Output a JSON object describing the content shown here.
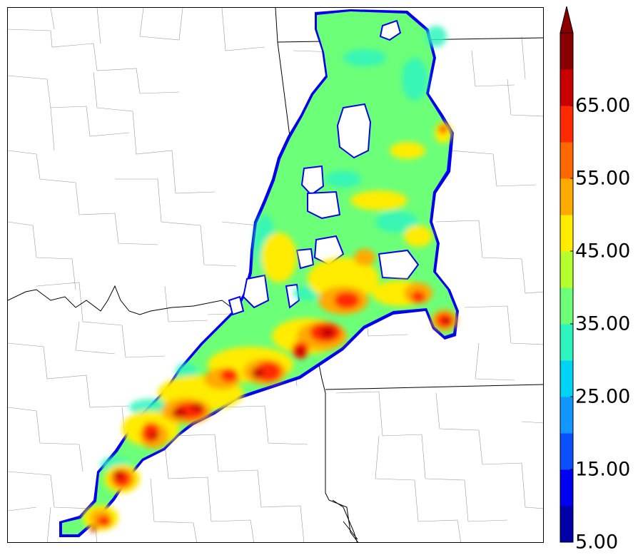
{
  "colorbar": {
    "labels": [
      "5.00",
      "15.00",
      "25.00",
      "35.00",
      "45.00",
      "55.00",
      "65.00"
    ],
    "colors": [
      "#0000a8",
      "#0000f0",
      "#0a50ff",
      "#1296ff",
      "#00d4f6",
      "#2ef5c0",
      "#6cff78",
      "#b4ff2c",
      "#ffec00",
      "#ffaa00",
      "#ff6800",
      "#ff2a00",
      "#c80000",
      "#8a0000"
    ],
    "extend": "max"
  }
}
